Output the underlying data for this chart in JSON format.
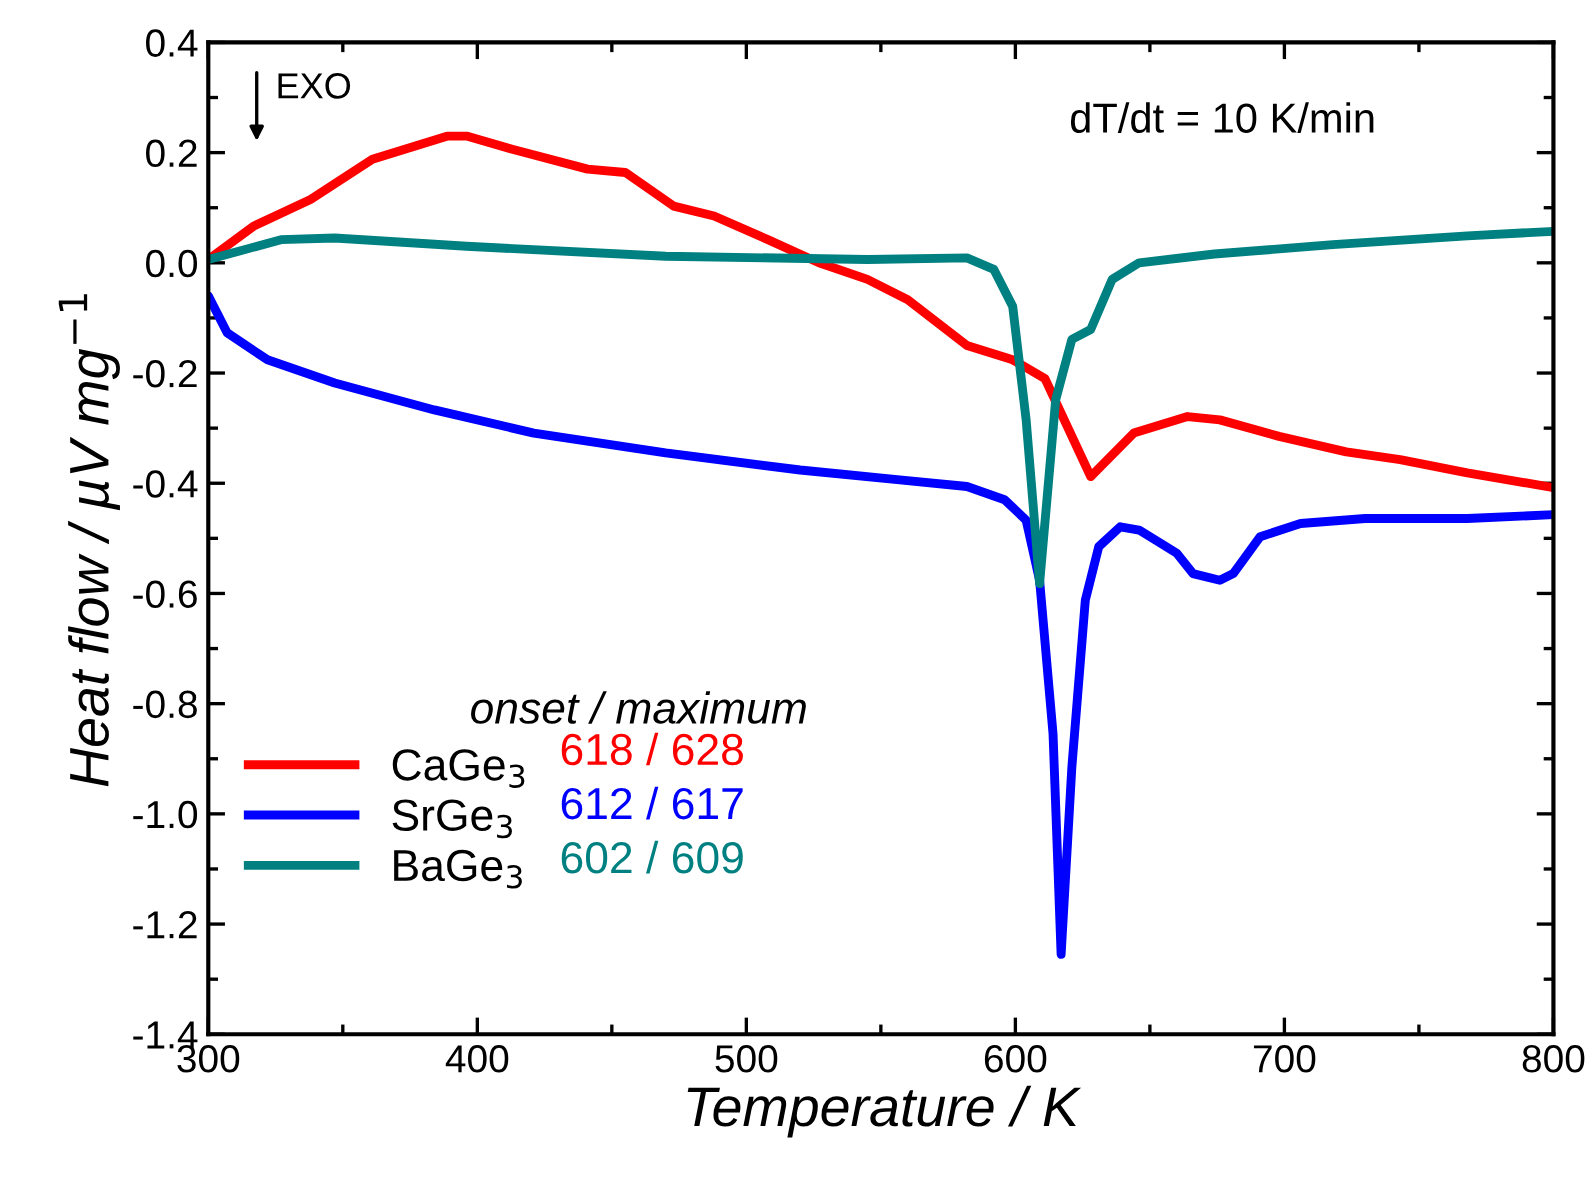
{
  "chart_data": {
    "type": "line",
    "xlabel": "Temperature / K",
    "ylabel": "Heat flow / µV mg$^{−1}$",
    "xlim": [
      300,
      800
    ],
    "ylim": [
      -1.4,
      0.4
    ],
    "xticks": [
      300,
      400,
      500,
      600,
      700,
      800
    ],
    "yticks": [
      -1.4,
      -1.2,
      {
        "value": -1,
        "label": "-1.0"
      },
      -0.8,
      -0.6,
      -0.4,
      -0.2,
      {
        "value": 0,
        "label": "0.0"
      },
      0.2,
      0.4
    ],
    "grid": false,
    "legend": "bottom left",
    "marker": "none",
    "line_style": "solid",
    "annotations": [
      "EXO",
      "dT/dt = 10 K/min",
      "onset / maximum",
      "618 / 628",
      "612 / 617",
      "602 / 609"
    ],
    "series": [
      {
        "name": "CaGe$_{3}$",
        "color": "#ff0000",
        "x": [
          300,
          317,
          338,
          361,
          389,
          396,
          413,
          441,
          455,
          473,
          488,
          508,
          527,
          545,
          560,
          582,
          599,
          611,
          628,
          644,
          664,
          676,
          698,
          723,
          743,
          768,
          800
        ],
        "values": [
          0.006,
          0.067,
          0.115,
          0.188,
          0.23,
          0.23,
          0.206,
          0.17,
          0.164,
          0.103,
          0.085,
          0.042,
          0.0,
          -0.03,
          -0.067,
          -0.15,
          -0.176,
          -0.21,
          -0.388,
          -0.309,
          -0.279,
          -0.285,
          -0.315,
          -0.343,
          -0.357,
          -0.381,
          -0.408
        ]
      },
      {
        "name": "SrGe$_{3}$",
        "color": "#0000ff",
        "x": [
          300,
          307,
          322,
          347,
          384,
          421,
          470,
          520,
          557,
          582,
          596,
          604,
          609,
          614,
          617,
          621,
          626,
          631,
          639,
          646,
          654,
          660,
          666,
          676,
          681,
          691,
          706,
          730,
          768,
          800
        ],
        "values": [
          -0.06,
          -0.127,
          -0.176,
          -0.218,
          -0.267,
          -0.309,
          -0.345,
          -0.376,
          -0.394,
          -0.406,
          -0.43,
          -0.467,
          -0.576,
          -0.855,
          -1.255,
          -0.915,
          -0.612,
          -0.515,
          -0.479,
          -0.485,
          -0.509,
          -0.527,
          -0.564,
          -0.576,
          -0.564,
          -0.497,
          -0.473,
          -0.464,
          -0.464,
          -0.457
        ]
      },
      {
        "name": "BaGe$_{3}$",
        "color": "#008080",
        "x": [
          300,
          327,
          347,
          396,
          470,
          545,
          582,
          592,
          599,
          604,
          609,
          615,
          621,
          628,
          636,
          646,
          674,
          718,
          768,
          800
        ],
        "values": [
          0.006,
          0.042,
          0.045,
          0.03,
          0.012,
          0.006,
          0.009,
          -0.012,
          -0.079,
          -0.285,
          -0.582,
          -0.248,
          -0.139,
          -0.121,
          -0.03,
          0.0,
          0.016,
          0.033,
          0.049,
          0.057
        ]
      }
    ]
  }
}
